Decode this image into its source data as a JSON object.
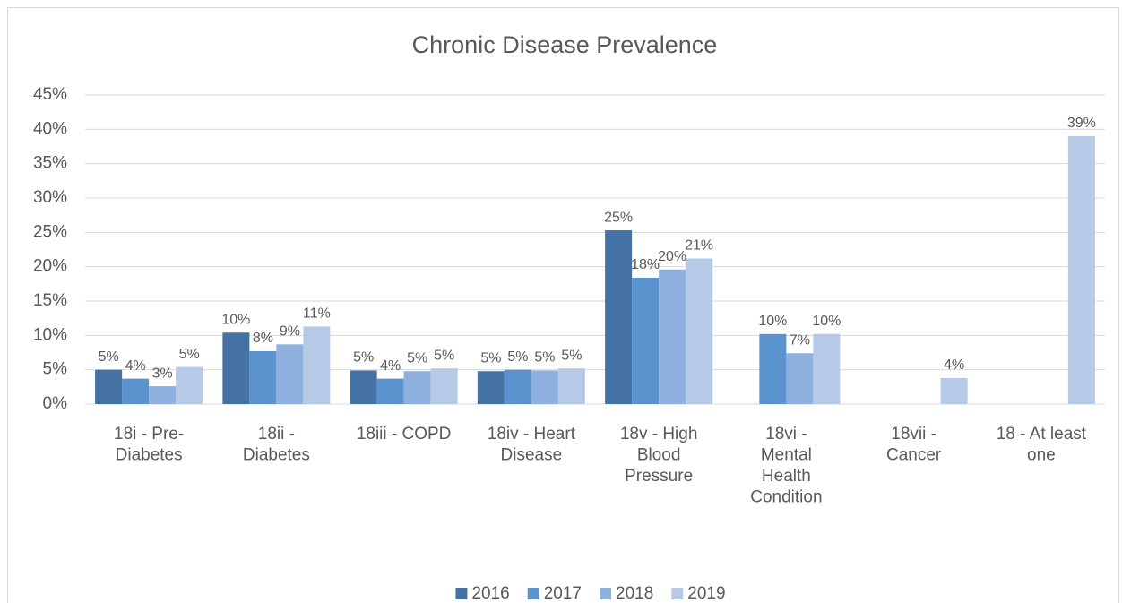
{
  "chart_data": {
    "type": "bar",
    "title": "Chronic Disease Prevalence",
    "categories": [
      "18i - Pre-Diabetes",
      "18ii - Diabetes",
      "18iii - COPD",
      "18iv - Heart Disease",
      "18v - High Blood Pressure",
      "18vi - Mental Health Condition",
      "18vii - Cancer",
      "18 - At least one"
    ],
    "series": [
      {
        "name": "2016",
        "color": "#4472a4",
        "values": [
          5.0,
          10.4,
          4.9,
          4.8,
          25.3,
          null,
          null,
          null
        ],
        "value_labels": [
          "5%",
          "10%",
          "5%",
          "5%",
          "25%",
          null,
          null,
          null
        ]
      },
      {
        "name": "2017",
        "color": "#5b93cf",
        "values": [
          3.7,
          7.7,
          3.7,
          5.0,
          18.4,
          10.2,
          null,
          null
        ],
        "value_labels": [
          "4%",
          "8%",
          "4%",
          "5%",
          "18%",
          "10%",
          null,
          null
        ]
      },
      {
        "name": "2018",
        "color": "#8eb0df",
        "values": [
          2.6,
          8.7,
          4.8,
          4.9,
          19.6,
          7.4,
          null,
          null
        ],
        "value_labels": [
          "3%",
          "9%",
          "5%",
          "5%",
          "20%",
          "7%",
          null,
          null
        ]
      },
      {
        "name": "2019",
        "color": "#b6cae8",
        "values": [
          5.4,
          11.3,
          5.2,
          5.2,
          21.2,
          10.2,
          3.8,
          39.0
        ],
        "value_labels": [
          "5%",
          "11%",
          "5%",
          "5%",
          "21%",
          "10%",
          "4%",
          "39%"
        ]
      }
    ],
    "ylim": [
      0,
      45
    ],
    "yticks": [
      {
        "value": 0,
        "label": "0%"
      },
      {
        "value": 5,
        "label": "5%"
      },
      {
        "value": 10,
        "label": "10%"
      },
      {
        "value": 15,
        "label": "15%"
      },
      {
        "value": 20,
        "label": "20%"
      },
      {
        "value": 25,
        "label": "25%"
      },
      {
        "value": 30,
        "label": "30%"
      },
      {
        "value": 35,
        "label": "35%"
      },
      {
        "value": 40,
        "label": "40%"
      },
      {
        "value": 45,
        "label": "45%"
      }
    ],
    "grid": true,
    "legend": "bottom"
  }
}
